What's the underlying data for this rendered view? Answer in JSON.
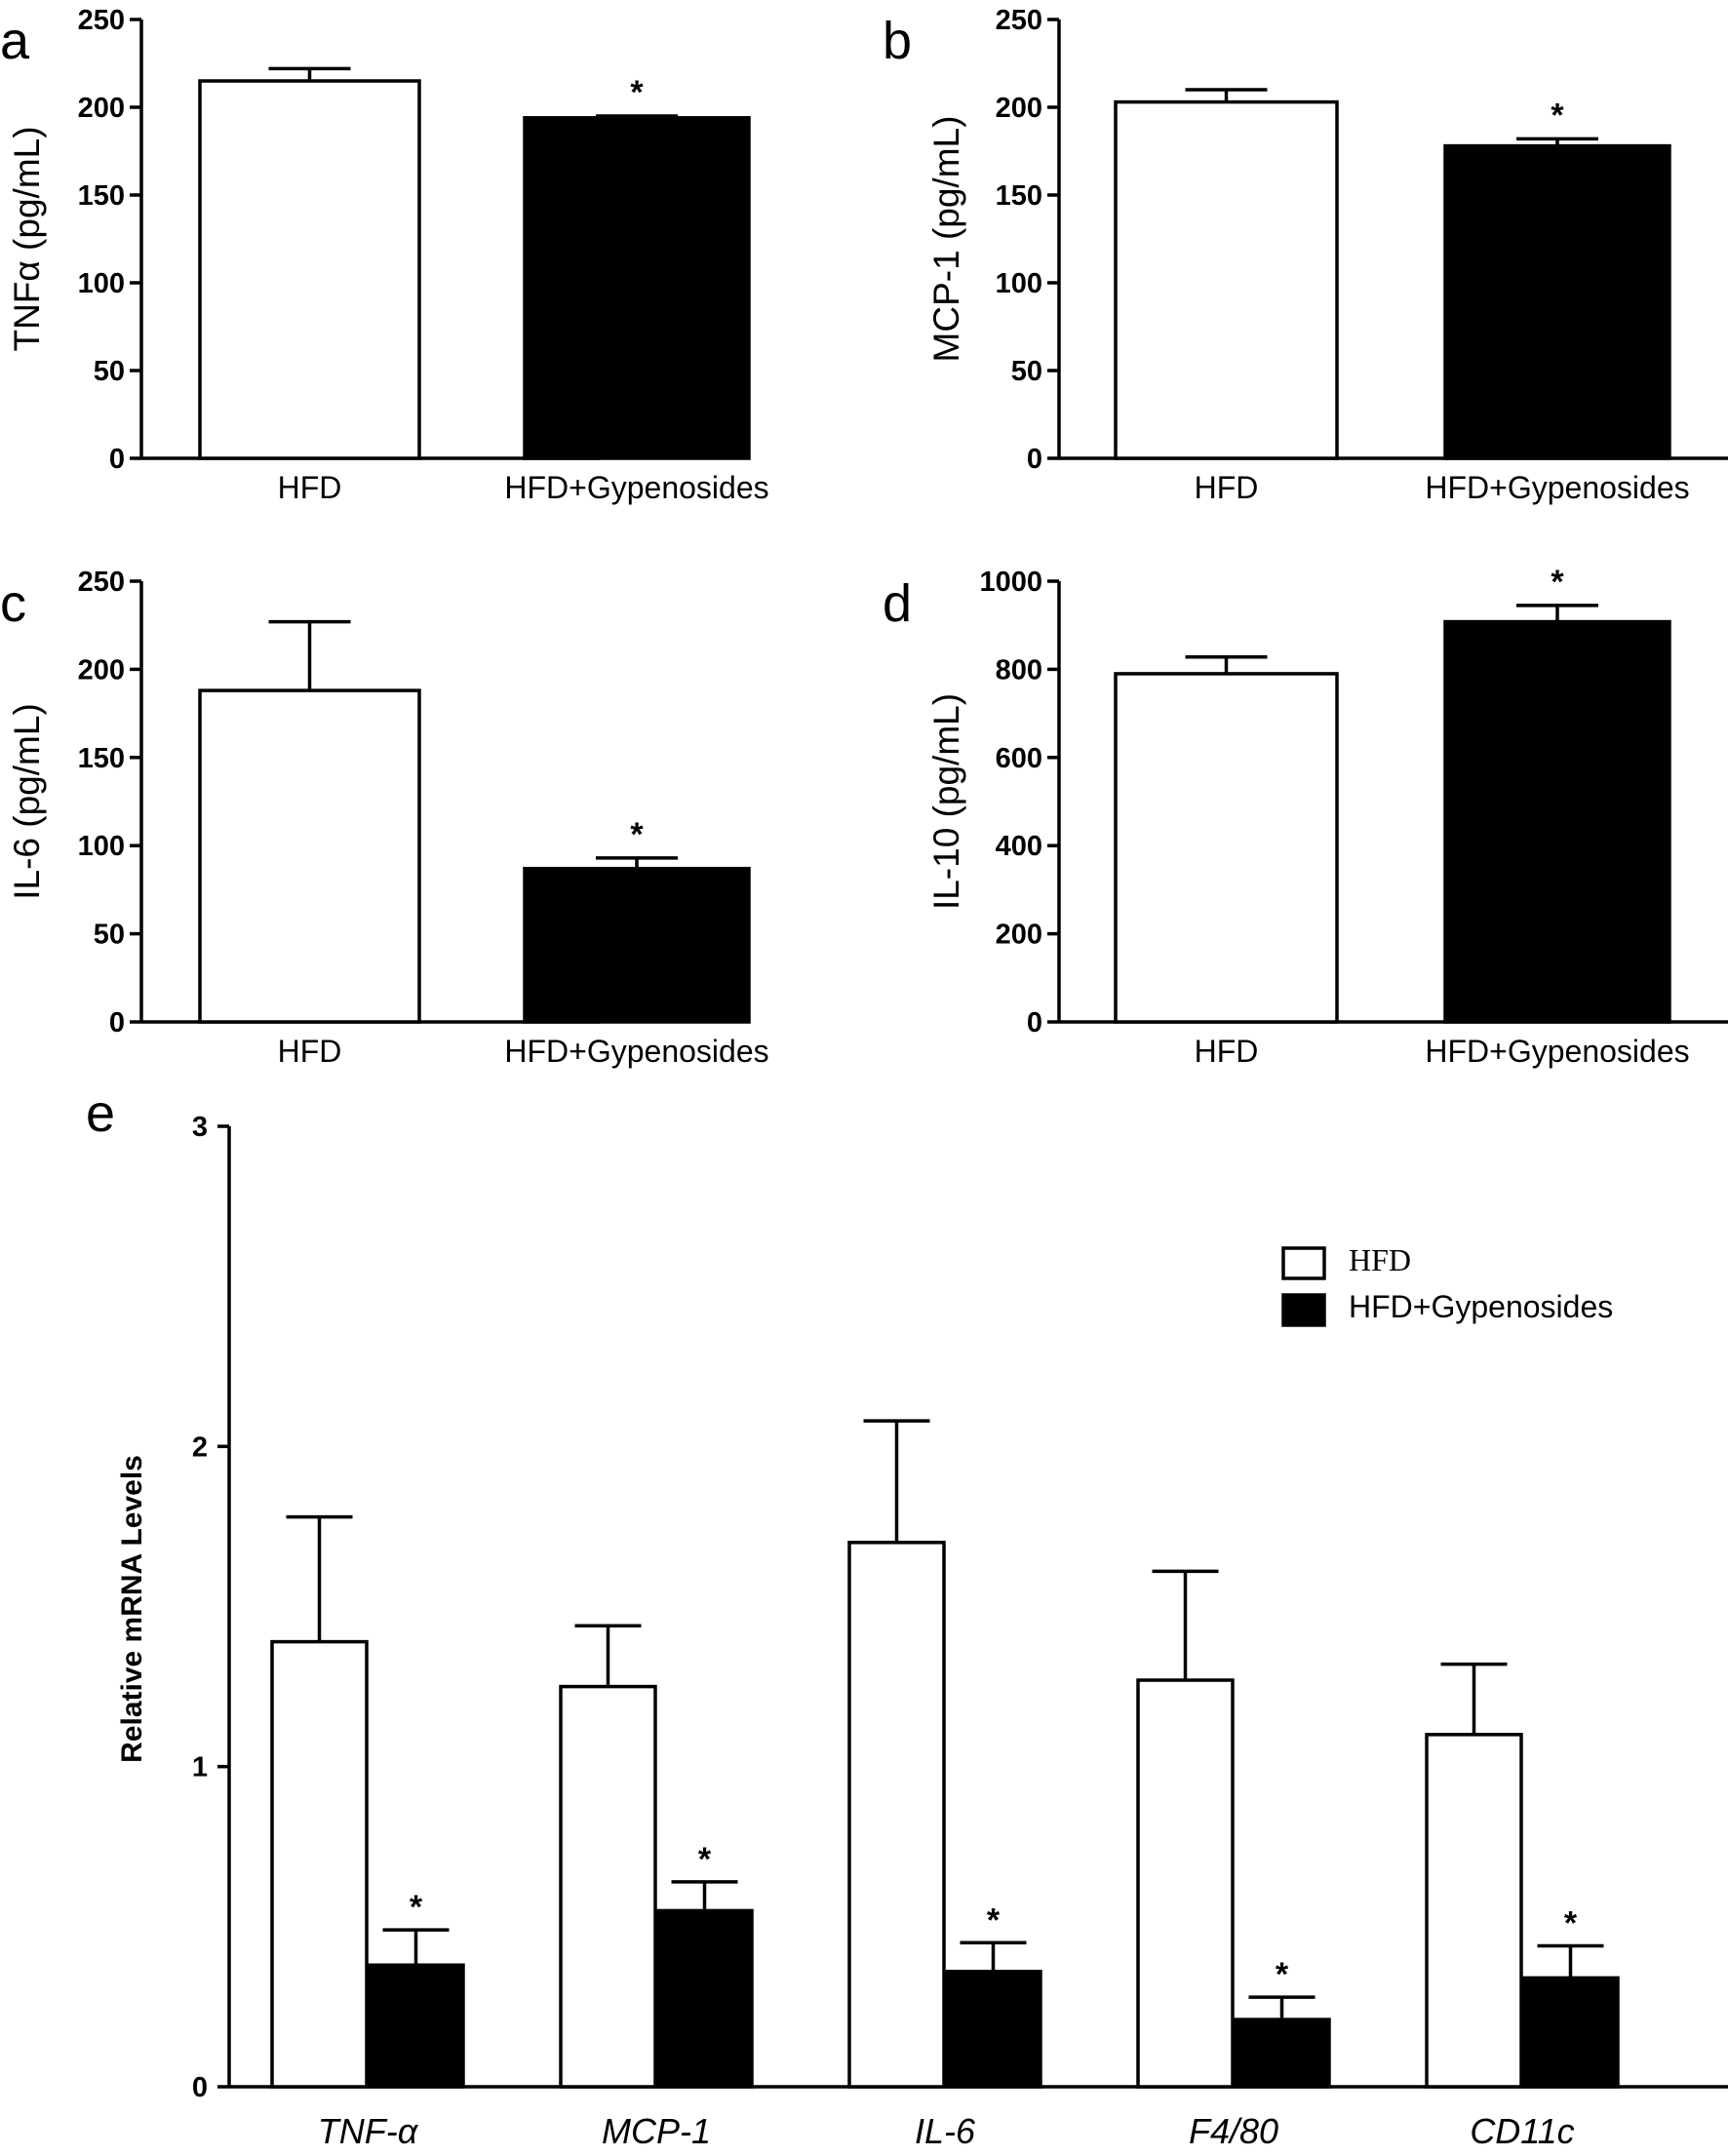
{
  "chart_data": [
    {
      "panel": "a",
      "type": "bar",
      "categories": [
        "HFD",
        "HFD+Gypenosides"
      ],
      "values": [
        215,
        194
      ],
      "errors": [
        7,
        1
      ],
      "significant": [
        false,
        true
      ],
      "ylabel": "TNFα (pg/mL)",
      "ylim": [
        0,
        250
      ],
      "yticks": [
        0,
        50,
        100,
        150,
        200,
        250
      ]
    },
    {
      "panel": "b",
      "type": "bar",
      "categories": [
        "HFD",
        "HFD+Gypenosides"
      ],
      "values": [
        203,
        178
      ],
      "errors": [
        7,
        4
      ],
      "significant": [
        false,
        true
      ],
      "ylabel": "MCP-1  (pg/mL)",
      "ylim": [
        0,
        250
      ],
      "yticks": [
        0,
        50,
        100,
        150,
        200,
        250
      ]
    },
    {
      "panel": "c",
      "type": "bar",
      "categories": [
        "HFD",
        "HFD+Gypenosides"
      ],
      "values": [
        188,
        87
      ],
      "errors": [
        39,
        6
      ],
      "significant": [
        false,
        true
      ],
      "ylabel": "IL-6  (pg/mL)",
      "ylim": [
        0,
        250
      ],
      "yticks": [
        0,
        50,
        100,
        150,
        200,
        250
      ]
    },
    {
      "panel": "d",
      "type": "bar",
      "categories": [
        "HFD",
        "HFD+Gypenosides"
      ],
      "values": [
        790,
        908
      ],
      "errors": [
        38,
        37
      ],
      "significant": [
        false,
        true
      ],
      "ylabel": "IL-10 (pg/mL)",
      "ylim": [
        0,
        1000
      ],
      "yticks": [
        0,
        200,
        400,
        600,
        800,
        1000
      ]
    },
    {
      "panel": "e",
      "type": "bar",
      "categories": [
        "TNF-α",
        "MCP-1",
        "IL-6",
        "F4/80",
        "CD11c"
      ],
      "series": [
        {
          "name": "HFD",
          "values": [
            1.39,
            1.25,
            1.7,
            1.27,
            1.1
          ],
          "errors": [
            0.39,
            0.19,
            0.38,
            0.34,
            0.22
          ],
          "significant": [
            false,
            false,
            false,
            false,
            false
          ]
        },
        {
          "name": "HFD+Gypenosides",
          "values": [
            0.38,
            0.55,
            0.36,
            0.21,
            0.34
          ],
          "errors": [
            0.11,
            0.09,
            0.09,
            0.07,
            0.1
          ],
          "significant": [
            true,
            true,
            true,
            true,
            true
          ]
        }
      ],
      "ylabel": "Relative mRNA Levels",
      "ylim": [
        0,
        3
      ],
      "yticks": [
        0,
        1,
        2,
        3
      ],
      "legend": "top-right"
    }
  ],
  "significance_marker": "*",
  "colors": {
    "HFD": "#ffffff",
    "HFD+Gypenosides": "#000000",
    "axis": "#000000"
  }
}
